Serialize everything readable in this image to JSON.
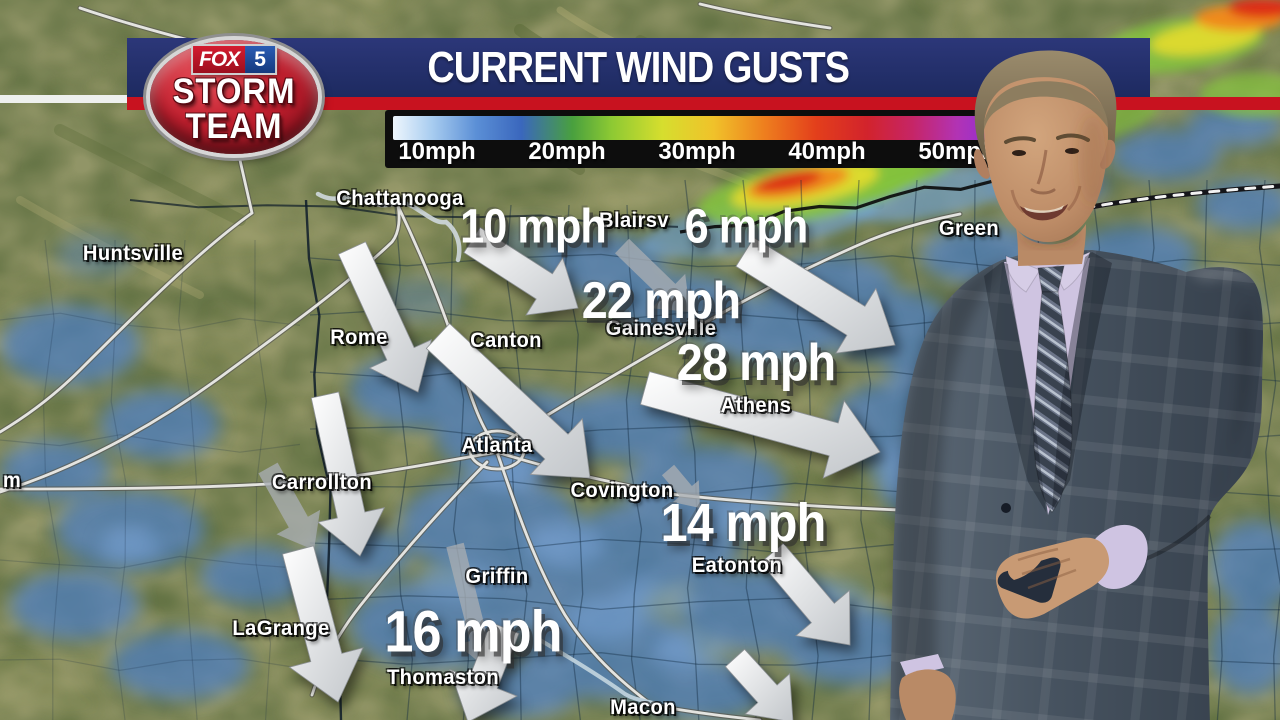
{
  "header": {
    "title": "CURRENT WIND GUSTS"
  },
  "logo": {
    "network": "FOX",
    "channel": "5",
    "line1": "STORM",
    "line2": "TEAM"
  },
  "legend": {
    "labels": [
      "10mph",
      "20mph",
      "30mph",
      "40mph",
      "50mph"
    ],
    "gradient_stops": [
      "#eef6fd",
      "#a9cdf0",
      "#5b8fd6",
      "#3a67bd",
      "#49a03e",
      "#8cc933",
      "#d6de2e",
      "#f0c22a",
      "#ee7e1e",
      "#e33f1b",
      "#d2232c",
      "#c62566",
      "#b233b4",
      "#8f2ed6",
      "#d996ec"
    ]
  },
  "colors": {
    "banner_navy": "#243070",
    "banner_red": "#c8121f",
    "legend_background": "#0d0d0d",
    "arrow_white": "#f5f6f7",
    "arrow_gray": "#a8adb2",
    "precip_blue": "#4d7fc4",
    "terrain_green": "#8f9663"
  },
  "map": {
    "cities": [
      {
        "name": "Chattanooga"
      },
      {
        "name": "Huntsville"
      },
      {
        "name": "Blairsv"
      },
      {
        "name": "Gainesville"
      },
      {
        "name": "Rome"
      },
      {
        "name": "Canton"
      },
      {
        "name": "Athens"
      },
      {
        "name": "Atlanta"
      },
      {
        "name": "Carrollton"
      },
      {
        "name": "Covington"
      },
      {
        "name": "Eatonton"
      },
      {
        "name": "Griffin"
      },
      {
        "name": "LaGrange"
      },
      {
        "name": "Thomaston"
      },
      {
        "name": "Macon"
      },
      {
        "name": "Green"
      },
      {
        "name": "m"
      }
    ],
    "gusts": [
      {
        "value": "10 mph",
        "near": "Chattanooga"
      },
      {
        "value": "6 mph",
        "near": "Blairsv"
      },
      {
        "value": "22 mph",
        "near": "Gainesville"
      },
      {
        "value": "28 mph",
        "near": "Athens"
      },
      {
        "value": "14 mph",
        "near": "Eatonton"
      },
      {
        "value": "16 mph",
        "near": "Thomaston"
      }
    ]
  }
}
